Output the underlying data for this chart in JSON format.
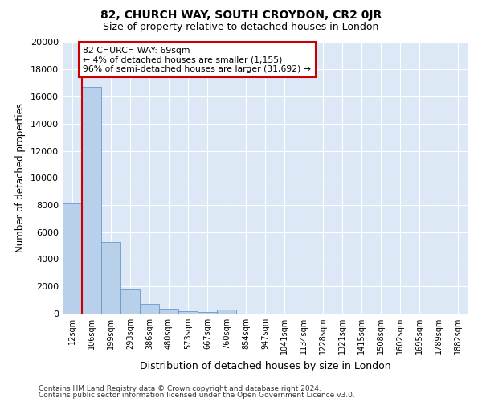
{
  "title": "82, CHURCH WAY, SOUTH CROYDON, CR2 0JR",
  "subtitle": "Size of property relative to detached houses in London",
  "xlabel": "Distribution of detached houses by size in London",
  "ylabel": "Number of detached properties",
  "bin_labels": [
    "12sqm",
    "106sqm",
    "199sqm",
    "293sqm",
    "386sqm",
    "480sqm",
    "573sqm",
    "667sqm",
    "760sqm",
    "854sqm",
    "947sqm",
    "1041sqm",
    "1134sqm",
    "1228sqm",
    "1321sqm",
    "1415sqm",
    "1508sqm",
    "1602sqm",
    "1695sqm",
    "1789sqm",
    "1882sqm"
  ],
  "bar_heights": [
    8100,
    16700,
    5300,
    1750,
    700,
    350,
    170,
    100,
    300,
    0,
    0,
    0,
    0,
    0,
    0,
    0,
    0,
    0,
    0,
    0,
    0
  ],
  "bar_color": "#b8d0ea",
  "bar_edge_color": "#6699cc",
  "vline_color": "#cc0000",
  "vline_x": 0.5,
  "annotation_text": "82 CHURCH WAY: 69sqm\n← 4% of detached houses are smaller (1,155)\n96% of semi-detached houses are larger (31,692) →",
  "annotation_box_facecolor": "#ffffff",
  "annotation_box_edgecolor": "#cc0000",
  "ylim": [
    0,
    20000
  ],
  "yticks": [
    0,
    2000,
    4000,
    6000,
    8000,
    10000,
    12000,
    14000,
    16000,
    18000,
    20000
  ],
  "footnote_line1": "Contains HM Land Registry data © Crown copyright and database right 2024.",
  "footnote_line2": "Contains public sector information licensed under the Open Government Licence v3.0.",
  "bg_color": "#dce8f5",
  "title_fontsize": 10,
  "subtitle_fontsize": 9
}
